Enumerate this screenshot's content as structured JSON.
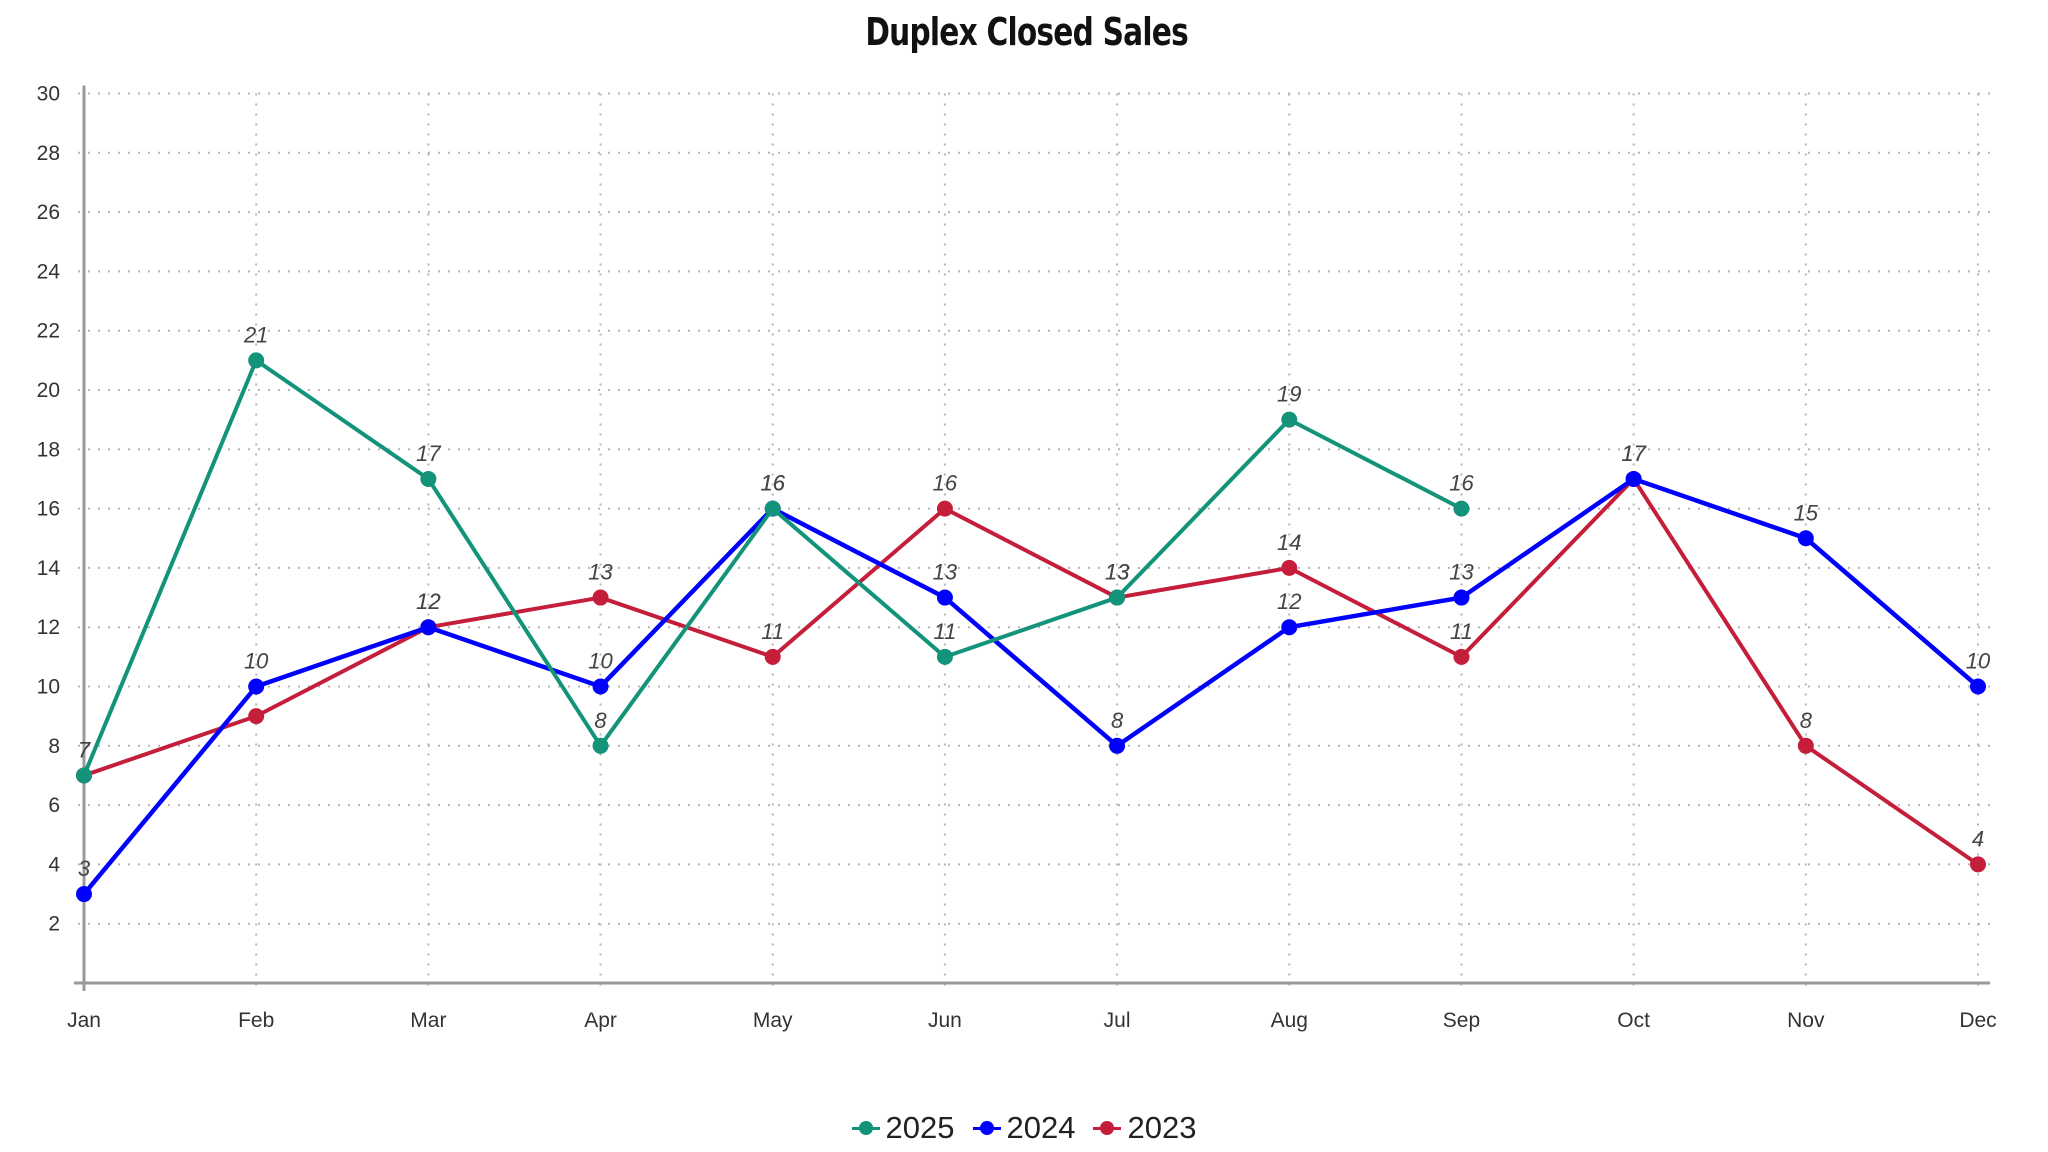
{
  "chart_data": {
    "type": "line",
    "title": "Duplex Closed Sales",
    "xlabel": "",
    "ylabel": "",
    "categories": [
      "Jan",
      "Feb",
      "Mar",
      "Apr",
      "May",
      "Jun",
      "Jul",
      "Aug",
      "Sep",
      "Oct",
      "Nov",
      "Dec"
    ],
    "yticks": [
      2,
      4,
      6,
      8,
      10,
      12,
      14,
      16,
      18,
      20,
      22,
      24,
      26,
      28,
      30
    ],
    "ylim": [
      0,
      30
    ],
    "grid": true,
    "legend_position": "bottom",
    "series": [
      {
        "name": "2025",
        "color": "#12937a",
        "values": [
          7,
          21,
          17,
          8,
          16,
          11,
          13,
          19,
          16,
          null,
          null,
          null
        ]
      },
      {
        "name": "2024",
        "color": "#0000ff",
        "values": [
          3,
          10,
          12,
          10,
          16,
          13,
          8,
          12,
          13,
          17,
          15,
          10
        ]
      },
      {
        "name": "2023",
        "color": "#c41e3a",
        "values": [
          7,
          9,
          12,
          13,
          11,
          16,
          13,
          14,
          11,
          17,
          8,
          4
        ]
      }
    ]
  }
}
